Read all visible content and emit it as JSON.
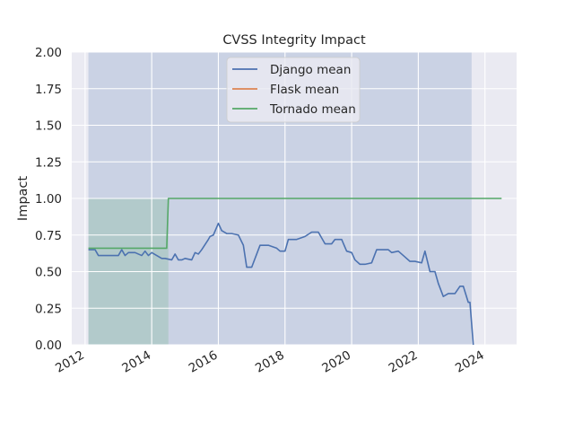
{
  "chart_data": {
    "type": "line",
    "title": "CVSS Integrity Impact",
    "xlabel": "",
    "ylabel": "Impact",
    "xlim": [
      2011.6,
      2024.95
    ],
    "ylim": [
      0,
      2.0
    ],
    "x_ticks": [
      2012,
      2014,
      2016,
      2018,
      2020,
      2022,
      2024
    ],
    "x_tick_labels": [
      "2012",
      "2014",
      "2016",
      "2018",
      "2020",
      "2022",
      "2024"
    ],
    "y_ticks": [
      0,
      0.25,
      0.5,
      0.75,
      1.0,
      1.25,
      1.5,
      1.75,
      2.0
    ],
    "y_tick_labels": [
      "0.00",
      "0.25",
      "0.50",
      "0.75",
      "1.00",
      "1.25",
      "1.50",
      "1.75",
      "2.00"
    ],
    "grid": true,
    "legend_position": "top-center",
    "series": [
      {
        "name": "Django mean",
        "color": "#4c72b0",
        "band": {
          "x_start": 2012.1,
          "x_end": 2023.6,
          "low": 0.0,
          "high": 2.0
        },
        "x": [
          2012.1,
          2012.3,
          2012.4,
          2013.0,
          2013.1,
          2013.2,
          2013.3,
          2013.5,
          2013.7,
          2013.8,
          2013.9,
          2014.0,
          2014.3,
          2014.4,
          2014.6,
          2014.7,
          2014.8,
          2014.9,
          2015.0,
          2015.2,
          2015.3,
          2015.4,
          2015.5,
          2015.7,
          2015.75,
          2015.85,
          2016.0,
          2016.1,
          2016.25,
          2016.4,
          2016.6,
          2016.75,
          2016.85,
          2017.0,
          2017.25,
          2017.35,
          2017.5,
          2017.75,
          2017.85,
          2018.0,
          2018.1,
          2018.25,
          2018.35,
          2018.6,
          2018.8,
          2018.9,
          2019.0,
          2019.2,
          2019.4,
          2019.5,
          2019.7,
          2019.85,
          2020.0,
          2020.1,
          2020.25,
          2020.4,
          2020.6,
          2020.75,
          2020.85,
          2021.1,
          2021.2,
          2021.4,
          2021.6,
          2021.75,
          2021.9,
          2022.1,
          2022.2,
          2022.35,
          2022.5,
          2022.6,
          2022.75,
          2022.9,
          2023.1,
          2023.25,
          2023.35,
          2023.5,
          2023.55,
          2023.65
        ],
        "values": [
          0.65,
          0.65,
          0.61,
          0.61,
          0.65,
          0.61,
          0.63,
          0.63,
          0.61,
          0.64,
          0.61,
          0.63,
          0.59,
          0.59,
          0.58,
          0.62,
          0.58,
          0.58,
          0.59,
          0.58,
          0.63,
          0.62,
          0.65,
          0.72,
          0.74,
          0.75,
          0.83,
          0.78,
          0.76,
          0.76,
          0.75,
          0.68,
          0.53,
          0.53,
          0.68,
          0.68,
          0.68,
          0.66,
          0.64,
          0.64,
          0.72,
          0.72,
          0.72,
          0.74,
          0.77,
          0.77,
          0.77,
          0.69,
          0.69,
          0.72,
          0.72,
          0.64,
          0.63,
          0.58,
          0.55,
          0.55,
          0.56,
          0.65,
          0.65,
          0.65,
          0.63,
          0.64,
          0.6,
          0.57,
          0.57,
          0.56,
          0.64,
          0.5,
          0.5,
          0.42,
          0.33,
          0.35,
          0.35,
          0.4,
          0.4,
          0.29,
          0.29,
          0.0
        ]
      },
      {
        "name": "Flask mean",
        "color": "#dd8452",
        "x": [],
        "values": []
      },
      {
        "name": "Tornado mean",
        "color": "#55a868",
        "band": {
          "x_start": 2012.1,
          "x_end": 2014.5,
          "low": 0.0,
          "high": 1.0
        },
        "x": [
          2012.1,
          2014.45,
          2014.5,
          2024.5
        ],
        "values": [
          0.66,
          0.66,
          1.0,
          1.0
        ]
      }
    ]
  }
}
